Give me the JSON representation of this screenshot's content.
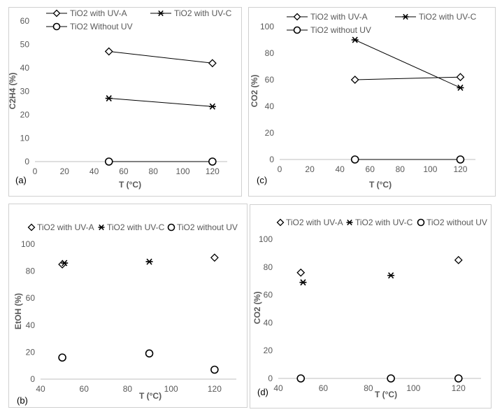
{
  "colors": {
    "panel_border": "#d0d0d0",
    "axis": "#bfbfbf",
    "text": "#595959",
    "mark": "#000000"
  },
  "chart_data": [
    {
      "panel": "(a)",
      "type": "line",
      "ylabel": "C2H4 (%)",
      "xlabel": "T (°C)",
      "xlim": [
        0,
        130
      ],
      "ylim": [
        0,
        60
      ],
      "xticks": [
        "0",
        "20",
        "40",
        "60",
        "80",
        "100",
        "120"
      ],
      "yticks": [
        "0",
        "10",
        "20",
        "30",
        "40",
        "50",
        "60"
      ],
      "legend": "top",
      "series": [
        {
          "name": "TiO2  with UV-A",
          "marker": "diamond",
          "line": true,
          "x": [
            50,
            120
          ],
          "y": [
            47,
            42
          ]
        },
        {
          "name": "TiO2 with UV-C",
          "marker": "star",
          "line": true,
          "x": [
            50,
            120
          ],
          "y": [
            27,
            23.5
          ]
        },
        {
          "name": "TiO2 Without UV",
          "marker": "circle",
          "line": true,
          "x": [
            50,
            120
          ],
          "y": [
            0,
            0
          ]
        }
      ]
    },
    {
      "panel": "(c)",
      "type": "line",
      "ylabel": "CO2 (%)",
      "xlabel": "T (°C)",
      "xlim": [
        0,
        130
      ],
      "ylim": [
        0,
        100
      ],
      "xticks": [
        "0",
        "20",
        "40",
        "60",
        "80",
        "100",
        "120"
      ],
      "yticks": [
        "0",
        "20",
        "40",
        "60",
        "80",
        "100"
      ],
      "legend": "top",
      "series": [
        {
          "name": "TiO2 with UV-A",
          "marker": "diamond",
          "line": true,
          "x": [
            50,
            120
          ],
          "y": [
            60,
            62
          ]
        },
        {
          "name": "TiO2 with UV-C",
          "marker": "star",
          "line": true,
          "x": [
            50,
            120
          ],
          "y": [
            90,
            54
          ]
        },
        {
          "name": "TiO2 without UV",
          "marker": "circle",
          "line": true,
          "x": [
            50,
            120
          ],
          "y": [
            0,
            0
          ]
        }
      ]
    },
    {
      "panel": "(b)",
      "type": "scatter",
      "ylabel": "EtOH (%)",
      "xlabel": "T (°C)",
      "xlim": [
        40,
        130
      ],
      "ylim": [
        0,
        100
      ],
      "xticks": [
        "40",
        "60",
        "80",
        "100",
        "120"
      ],
      "yticks": [
        "0",
        "20",
        "40",
        "60",
        "80",
        "100"
      ],
      "legend": "top",
      "series": [
        {
          "name": "TiO2 with UV-A",
          "marker": "diamond",
          "line": false,
          "x": [
            50,
            120
          ],
          "y": [
            85,
            90
          ]
        },
        {
          "name": "TiO2 with UV-C",
          "marker": "star",
          "line": false,
          "x": [
            51,
            90
          ],
          "y": [
            86,
            87
          ]
        },
        {
          "name": "TiO2 without UV",
          "marker": "circle",
          "line": false,
          "x": [
            50,
            90,
            120
          ],
          "y": [
            16,
            19,
            7
          ]
        }
      ]
    },
    {
      "panel": "(d)",
      "type": "scatter",
      "ylabel": "CO2 (%)",
      "xlabel": "T (°C)",
      "xlim": [
        40,
        130
      ],
      "ylim": [
        0,
        100
      ],
      "xticks": [
        "40",
        "60",
        "80",
        "100",
        "120"
      ],
      "yticks": [
        "0",
        "20",
        "40",
        "60",
        "80",
        "100"
      ],
      "legend": "top",
      "series": [
        {
          "name": "TiO2 with UV-A",
          "marker": "diamond",
          "line": false,
          "x": [
            50,
            120
          ],
          "y": [
            76,
            85
          ]
        },
        {
          "name": "TiO2 with UV-C",
          "marker": "star",
          "line": false,
          "x": [
            51,
            90
          ],
          "y": [
            69,
            74
          ]
        },
        {
          "name": "TiO2 without UV",
          "marker": "circle",
          "line": false,
          "x": [
            50,
            90,
            120
          ],
          "y": [
            0,
            0,
            0
          ]
        }
      ]
    }
  ]
}
